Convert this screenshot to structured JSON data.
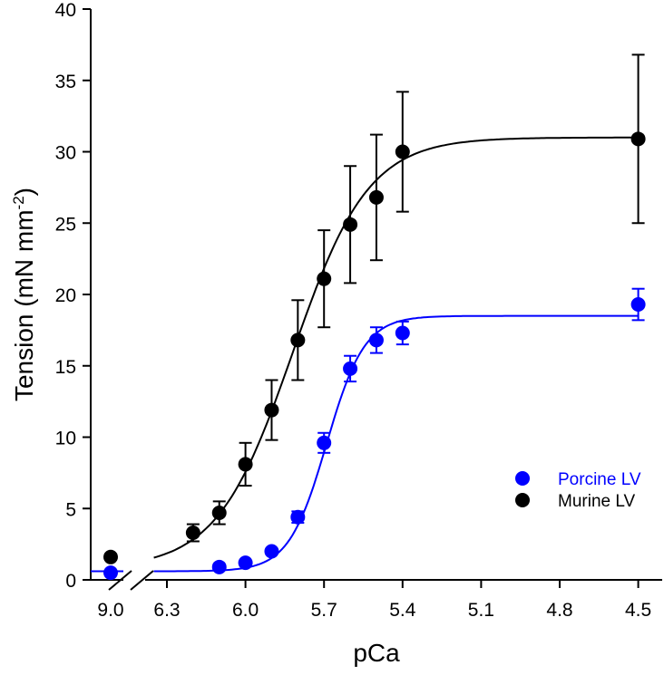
{
  "chart_data": {
    "type": "scatter",
    "xlabel": "pCa",
    "ylabel": "Tension (mN mm",
    "ylabel_sup": "-2",
    "ylabel_close": ")",
    "ylim": [
      0,
      40
    ],
    "yticks": [
      0,
      5,
      10,
      15,
      20,
      25,
      30,
      35,
      40
    ],
    "xticks": [
      "9.0",
      "6.3",
      "6.0",
      "5.7",
      "5.4",
      "5.1",
      "4.8",
      "4.5"
    ],
    "x_axis_break": true,
    "legend_position": "bottom-right",
    "series": [
      {
        "name": "Porcine LV",
        "color": "#0000ff",
        "x": [
          9.0,
          6.1,
          6.0,
          5.9,
          5.8,
          5.7,
          5.6,
          5.5,
          5.4,
          4.5
        ],
        "y": [
          0.5,
          0.9,
          1.2,
          2.0,
          4.4,
          9.6,
          14.8,
          16.8,
          17.3,
          19.3
        ],
        "err": [
          0.1,
          0.1,
          0.1,
          0.2,
          0.4,
          0.7,
          0.9,
          0.9,
          0.8,
          1.1
        ],
        "fit": {
          "min": 0.6,
          "max": 18.5,
          "pCa50": 5.69,
          "nH": 6.0
        }
      },
      {
        "name": "Murine LV",
        "color": "#000000",
        "x": [
          9.0,
          6.2,
          6.1,
          6.0,
          5.9,
          5.8,
          5.7,
          5.6,
          5.5,
          5.4,
          4.5
        ],
        "y": [
          1.6,
          3.3,
          4.7,
          8.1,
          11.9,
          16.8,
          21.1,
          24.9,
          26.8,
          30.0,
          30.9
        ],
        "err": [
          0.2,
          0.6,
          0.8,
          1.5,
          2.1,
          2.8,
          3.4,
          4.1,
          4.4,
          4.2,
          5.9
        ],
        "fit": {
          "min": 0.8,
          "max": 31.0,
          "pCa50": 5.82,
          "nH": 3.0
        }
      }
    ]
  }
}
